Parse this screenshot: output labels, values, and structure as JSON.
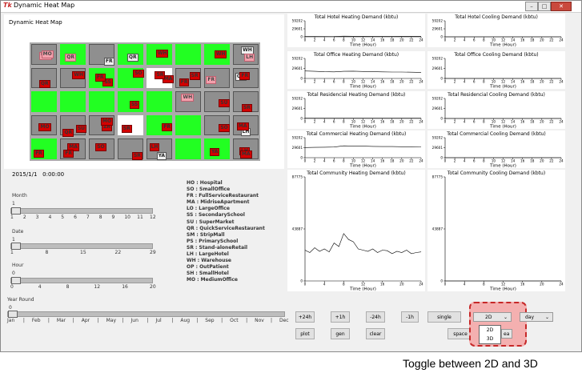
{
  "window": {
    "title": "Dynamic Heat Map",
    "app_icon": "Tk"
  },
  "map": {
    "title": "Dynamic Heat Map",
    "timestamp_date": "2015/1/1",
    "timestamp_time": "0:00:00"
  },
  "sliders": {
    "month": {
      "label": "Month",
      "value": "1",
      "ticks": [
        "1",
        "2",
        "3",
        "4",
        "5",
        "6",
        "7",
        "8",
        "9",
        "10",
        "11",
        "12"
      ]
    },
    "date": {
      "label": "Date",
      "value": "1",
      "ticks": [
        "1",
        "8",
        "15",
        "22",
        "29"
      ]
    },
    "hour": {
      "label": "Hour",
      "value": "0",
      "ticks": [
        "0",
        "4",
        "8",
        "12",
        "16",
        "20"
      ]
    },
    "year": {
      "label": "Year Round",
      "value": "0",
      "ticks": [
        "Jan",
        "Feb",
        "Mar",
        "Apr",
        "May",
        "Jun",
        "Jul",
        "Aug",
        "Sep",
        "Oct",
        "Nov",
        "Dec"
      ]
    }
  },
  "legend": [
    "HO : Hospital",
    "SO : SmallOffice",
    "FR : FullServiceRestaurant",
    "MA : MidriseApartment",
    "LO : LargeOffice",
    "SS : SecondarySchool",
    "SU : SuperMarket",
    "QR : QuickServiceRestaurant",
    "SM : StripMall",
    "PS : PrimarySchool",
    "SR : Stand-aloneRetail",
    "LH : LargeHotel",
    "WH : Warehouse",
    "OP : OutPatient",
    "SH : SmallHotel",
    "MO : MediumOffice"
  ],
  "charts": {
    "x_label": "Time (Hour)",
    "small_x_ticks": [
      "0",
      "2",
      "4",
      "6",
      "8",
      "10",
      "12",
      "14",
      "16",
      "18",
      "20",
      "22",
      "24"
    ],
    "big_x_ticks": [
      "0",
      "4",
      "8",
      "12",
      "16",
      "20",
      "24"
    ],
    "small_y_ticks": [
      "59202",
      "29601",
      "0"
    ],
    "big_y_ticks": [
      "87775",
      "43887",
      "0"
    ],
    "panels": [
      {
        "title": "Total Hotel Heating Demand (kbtu)"
      },
      {
        "title": "Total Hotel Cooling Demand (kbtu)"
      },
      {
        "title": "Total Office Heating Demand (kbtu)"
      },
      {
        "title": "Total Office Cooling Demand (kbtu)"
      },
      {
        "title": "Total Residencial Heating Demand (kbtu)"
      },
      {
        "title": "Total Residencial Cooling Demand (kbtu)"
      },
      {
        "title": "Total Commercial Heating Demand (kbtu)"
      },
      {
        "title": "Total Commercial Cooling Demand (kbtu)"
      },
      {
        "title": "Total Community Heating Demand (kbtu)"
      },
      {
        "title": "Total Community Cooling Demand (kbtu)"
      }
    ]
  },
  "chart_data": [
    {
      "type": "line",
      "title": "Total Hotel Heating Demand (kbtu)",
      "xlabel": "Time (Hour)",
      "ylim": [
        0,
        59202
      ],
      "x": [
        0,
        2,
        4,
        6,
        8,
        10,
        12,
        14,
        16,
        18,
        20,
        22,
        24
      ],
      "values": [
        1200,
        1100,
        1000,
        1100,
        2400,
        2200,
        2000,
        1900,
        1800,
        1900,
        2000,
        2000,
        2000
      ]
    },
    {
      "type": "line",
      "title": "Total Hotel Cooling Demand (kbtu)",
      "xlabel": "Time (Hour)",
      "ylim": [
        0,
        59202
      ],
      "x": [
        0,
        24
      ],
      "values": [
        0,
        0
      ]
    },
    {
      "type": "line",
      "title": "Total Office Heating Demand (kbtu)",
      "xlabel": "Time (Hour)",
      "ylim": [
        0,
        59202
      ],
      "x": [
        0,
        2,
        4,
        6,
        8,
        10,
        12,
        14,
        16,
        18,
        20,
        22,
        24
      ],
      "values": [
        22000,
        21000,
        20000,
        19500,
        21000,
        21500,
        20500,
        20000,
        19500,
        19000,
        19000,
        18500,
        18000
      ]
    },
    {
      "type": "line",
      "title": "Total Office Cooling Demand (kbtu)",
      "xlabel": "Time (Hour)",
      "ylim": [
        0,
        59202
      ],
      "x": [
        0,
        24
      ],
      "values": [
        0,
        0
      ]
    },
    {
      "type": "line",
      "title": "Total Residencial Heating Demand (kbtu)",
      "xlabel": "Time (Hour)",
      "ylim": [
        0,
        59202
      ],
      "x": [
        0,
        2,
        4,
        6,
        8,
        10,
        12,
        14,
        16,
        18,
        20,
        22,
        24
      ],
      "values": [
        700,
        650,
        650,
        650,
        700,
        650,
        600,
        600,
        600,
        600,
        650,
        650,
        650
      ]
    },
    {
      "type": "line",
      "title": "Total Residencial Cooling Demand (kbtu)",
      "xlabel": "Time (Hour)",
      "ylim": [
        0,
        59202
      ],
      "x": [
        0,
        24
      ],
      "values": [
        0,
        0
      ]
    },
    {
      "type": "line",
      "title": "Total Commercial Heating Demand (kbtu)",
      "xlabel": "Time (Hour)",
      "ylim": [
        0,
        59202
      ],
      "x": [
        0,
        2,
        4,
        6,
        8,
        10,
        12,
        14,
        16,
        18,
        20,
        22,
        24
      ],
      "values": [
        30000,
        30500,
        31000,
        31500,
        35000,
        34500,
        34000,
        33500,
        33000,
        33000,
        32500,
        32500,
        32000
      ]
    },
    {
      "type": "line",
      "title": "Total Commercial Cooling Demand (kbtu)",
      "xlabel": "Time (Hour)",
      "ylim": [
        0,
        59202
      ],
      "x": [
        0,
        24
      ],
      "values": [
        0,
        0
      ]
    },
    {
      "type": "line",
      "title": "Total Community Heating Demand (kbtu)",
      "xlabel": "Time (Hour)",
      "ylim": [
        0,
        87775
      ],
      "x": [
        0,
        1,
        2,
        3,
        4,
        5,
        6,
        7,
        8,
        9,
        10,
        11,
        12,
        13,
        14,
        15,
        16,
        17,
        18,
        19,
        20,
        21,
        22,
        23,
        24
      ],
      "values": [
        26000,
        24000,
        28000,
        25000,
        27000,
        24500,
        32000,
        29000,
        40000,
        35000,
        33000,
        27000,
        26000,
        25000,
        27000,
        24000,
        26000,
        25500,
        23000,
        25000,
        24000,
        26000,
        23000,
        24000,
        24500
      ]
    },
    {
      "type": "line",
      "title": "Total Community Cooling Demand (kbtu)",
      "xlabel": "Time (Hour)",
      "ylim": [
        0,
        87775
      ],
      "x": [
        0,
        24
      ],
      "values": [
        0,
        0
      ]
    }
  ],
  "controls": {
    "step_buttons": [
      "+24h",
      "+1h",
      "-24h",
      "-1h"
    ],
    "action_buttons": [
      "plot",
      "gen",
      "clear"
    ],
    "mode_single": "single",
    "mode_space": "space",
    "space_suffix": "ea",
    "view_combo": "2D",
    "view_options": [
      "2D",
      "3D"
    ],
    "period_combo": "day"
  },
  "caption": "Toggle between 2D and 3D",
  "colors": {
    "highlight": "#f4b0b0",
    "highlight_border": "#c62828",
    "building_tag": "#d40000",
    "grass": "#22ff22"
  }
}
